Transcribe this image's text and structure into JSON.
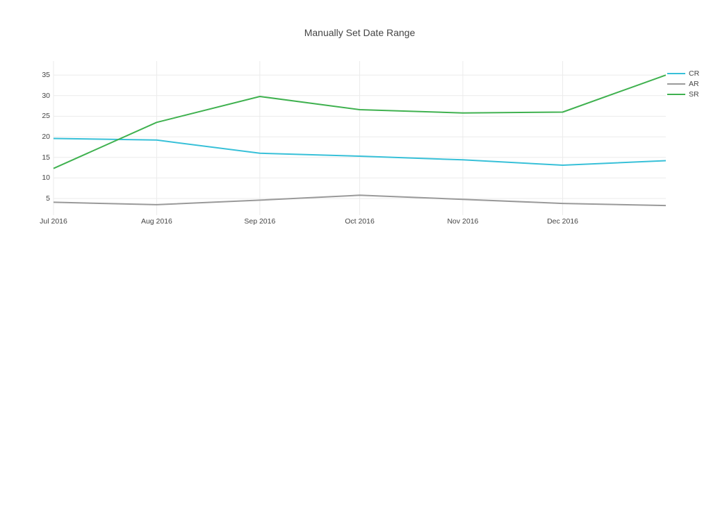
{
  "page": {
    "background": "#ffffff"
  },
  "chart_data": {
    "type": "line",
    "title": "Manually Set Date Range",
    "x": [
      "2016-07-01",
      "2016-08-01",
      "2016-09-01",
      "2016-10-01",
      "2016-11-01",
      "2016-12-01",
      "2017-01-01"
    ],
    "x_range": [
      "2016-07-01",
      "2017-01-01"
    ],
    "x_tick_labels": [
      "Jul 2016",
      "Aug 2016",
      "Sep 2016",
      "Oct 2016",
      "Nov 2016",
      "Dec 2016"
    ],
    "y_ticks": [
      5,
      10,
      15,
      20,
      25,
      30,
      35
    ],
    "y_range": [
      1.8,
      38.4
    ],
    "grid": true,
    "legend_position": "top-right",
    "series": [
      {
        "name": "CR",
        "color": "#37c0d8",
        "values": [
          19.6,
          19.2,
          16.0,
          15.3,
          14.4,
          13.1,
          14.2
        ]
      },
      {
        "name": "AR",
        "color": "#999999",
        "values": [
          4.1,
          3.5,
          4.6,
          5.8,
          4.8,
          3.8,
          3.3
        ]
      },
      {
        "name": "SR",
        "color": "#3fb14f",
        "values": [
          12.3,
          23.5,
          29.8,
          26.6,
          25.8,
          26.0,
          35.0
        ]
      }
    ],
    "colors": {
      "grid": "#ebebeb",
      "title_text": "#444444",
      "tick_text": "#444444",
      "legend_text": "#444444"
    }
  }
}
